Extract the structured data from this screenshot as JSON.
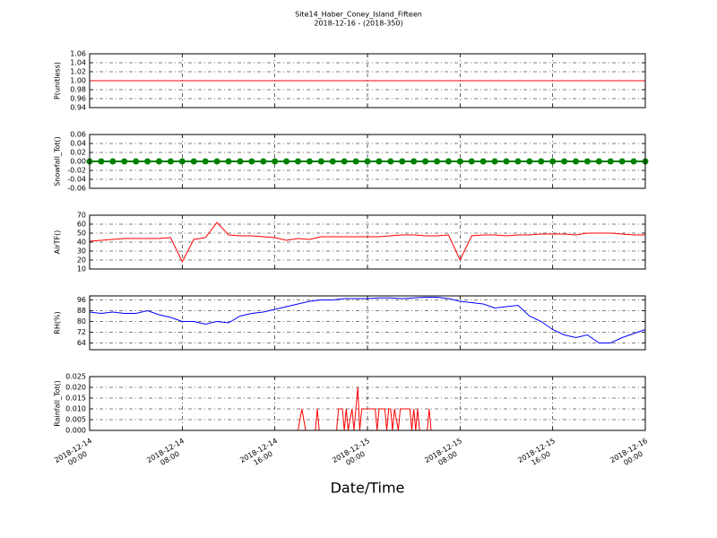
{
  "chart_data": [
    {
      "type": "line",
      "title": "Site14_Haber_Coney_Island_Fifteen",
      "subtitle": "2018-12-16 - (2018-350)",
      "ylabel": "P(unitless)",
      "ylim": [
        0.94,
        1.06
      ],
      "yticks": [
        0.94,
        0.96,
        0.98,
        {
          "value": 1,
          "label": "1.00"
        },
        1.02,
        1.04,
        1.06
      ],
      "grid": true,
      "color": "#ff0000",
      "x": [
        "2018-12-14 00:00",
        "2018-12-14 01:00",
        "2018-12-14 02:00",
        "2018-12-14 03:00",
        "2018-12-14 04:00",
        "2018-12-14 05:00",
        "2018-12-14 06:00",
        "2018-12-14 07:00",
        "2018-12-14 08:00",
        "2018-12-14 09:00",
        "2018-12-14 10:00",
        "2018-12-14 11:00",
        "2018-12-14 12:00",
        "2018-12-14 13:00",
        "2018-12-14 14:00",
        "2018-12-14 15:00",
        "2018-12-14 16:00",
        "2018-12-14 17:00",
        "2018-12-14 18:00",
        "2018-12-14 19:00",
        "2018-12-14 20:00",
        "2018-12-14 21:00",
        "2018-12-14 22:00",
        "2018-12-14 23:00",
        "2018-12-15 00:00",
        "2018-12-15 01:00",
        "2018-12-15 02:00",
        "2018-12-15 03:00",
        "2018-12-15 04:00",
        "2018-12-15 05:00",
        "2018-12-15 06:00",
        "2018-12-15 07:00",
        "2018-12-15 08:00",
        "2018-12-15 09:00",
        "2018-12-15 10:00",
        "2018-12-15 11:00",
        "2018-12-15 12:00",
        "2018-12-15 13:00",
        "2018-12-15 14:00",
        "2018-12-15 15:00",
        "2018-12-15 16:00",
        "2018-12-15 17:00",
        "2018-12-15 18:00",
        "2018-12-15 19:00",
        "2018-12-15 20:00",
        "2018-12-15 21:00",
        "2018-12-15 22:00",
        "2018-12-15 23:00",
        "2018-12-16 00:00"
      ],
      "values": [
        1,
        1,
        1,
        1,
        1,
        1,
        1,
        1,
        1,
        1,
        1,
        1,
        1,
        1,
        1,
        1,
        1,
        1,
        1,
        1,
        1,
        1,
        1,
        1,
        1,
        1,
        1,
        1,
        1,
        1,
        1,
        1,
        1,
        1,
        1,
        1,
        1,
        1,
        1,
        1,
        1,
        1,
        1,
        1,
        1,
        1,
        1,
        1,
        1
      ]
    },
    {
      "type": "line",
      "ylabel": "Snowfall_Tot()",
      "marker": "o",
      "ylim": [
        -0.06,
        0.06
      ],
      "yticks": [
        -0.06,
        -0.04,
        -0.02,
        {
          "value": 0,
          "label": "0.00"
        },
        0.02,
        0.04,
        0.06
      ],
      "grid": true,
      "color": "#008000",
      "x": [
        "2018-12-14 00:00",
        "2018-12-14 01:00",
        "2018-12-14 02:00",
        "2018-12-14 03:00",
        "2018-12-14 04:00",
        "2018-12-14 05:00",
        "2018-12-14 06:00",
        "2018-12-14 07:00",
        "2018-12-14 08:00",
        "2018-12-14 09:00",
        "2018-12-14 10:00",
        "2018-12-14 11:00",
        "2018-12-14 12:00",
        "2018-12-14 13:00",
        "2018-12-14 14:00",
        "2018-12-14 15:00",
        "2018-12-14 16:00",
        "2018-12-14 17:00",
        "2018-12-14 18:00",
        "2018-12-14 19:00",
        "2018-12-14 20:00",
        "2018-12-14 21:00",
        "2018-12-14 22:00",
        "2018-12-14 23:00",
        "2018-12-15 00:00",
        "2018-12-15 01:00",
        "2018-12-15 02:00",
        "2018-12-15 03:00",
        "2018-12-15 04:00",
        "2018-12-15 05:00",
        "2018-12-15 06:00",
        "2018-12-15 07:00",
        "2018-12-15 08:00",
        "2018-12-15 09:00",
        "2018-12-15 10:00",
        "2018-12-15 11:00",
        "2018-12-15 12:00",
        "2018-12-15 13:00",
        "2018-12-15 14:00",
        "2018-12-15 15:00",
        "2018-12-15 16:00",
        "2018-12-15 17:00",
        "2018-12-15 18:00",
        "2018-12-15 19:00",
        "2018-12-15 20:00",
        "2018-12-15 21:00",
        "2018-12-15 22:00",
        "2018-12-15 23:00",
        "2018-12-16 00:00"
      ],
      "values": [
        0,
        0,
        0,
        0,
        0,
        0,
        0,
        0,
        0,
        0,
        0,
        0,
        0,
        0,
        0,
        0,
        0,
        0,
        0,
        0,
        0,
        0,
        0,
        0,
        0,
        0,
        0,
        0,
        0,
        0,
        0,
        0,
        0,
        0,
        0,
        0,
        0,
        0,
        0,
        0,
        0,
        0,
        0,
        0,
        0,
        0,
        0,
        0,
        0
      ]
    },
    {
      "type": "line",
      "ylabel": "AirTF()",
      "ylim": [
        10,
        70
      ],
      "yticks": [
        10,
        20,
        30,
        40,
        50,
        60,
        70
      ],
      "grid": true,
      "color": "#ff0000",
      "x": [
        "2018-12-14 00:00",
        "2018-12-14 01:00",
        "2018-12-14 02:00",
        "2018-12-14 03:00",
        "2018-12-14 04:00",
        "2018-12-14 05:00",
        "2018-12-14 06:00",
        "2018-12-14 07:00",
        "2018-12-14 08:00",
        "2018-12-14 09:00",
        "2018-12-14 10:00",
        "2018-12-14 11:00",
        "2018-12-14 12:00",
        "2018-12-14 13:00",
        "2018-12-14 14:00",
        "2018-12-14 15:00",
        "2018-12-14 16:00",
        "2018-12-14 17:00",
        "2018-12-14 18:00",
        "2018-12-14 19:00",
        "2018-12-14 20:00",
        "2018-12-14 21:00",
        "2018-12-14 22:00",
        "2018-12-14 23:00",
        "2018-12-15 00:00",
        "2018-12-15 01:00",
        "2018-12-15 02:00",
        "2018-12-15 03:00",
        "2018-12-15 04:00",
        "2018-12-15 05:00",
        "2018-12-15 06:00",
        "2018-12-15 07:00",
        "2018-12-15 08:00",
        "2018-12-15 09:00",
        "2018-12-15 10:00",
        "2018-12-15 11:00",
        "2018-12-15 12:00",
        "2018-12-15 13:00",
        "2018-12-15 14:00",
        "2018-12-15 15:00",
        "2018-12-15 16:00",
        "2018-12-15 17:00",
        "2018-12-15 18:00",
        "2018-12-15 19:00",
        "2018-12-15 20:00",
        "2018-12-15 21:00",
        "2018-12-15 22:00",
        "2018-12-15 23:00",
        "2018-12-16 00:00"
      ],
      "values": [
        41,
        42,
        43,
        44,
        44,
        44,
        44,
        45,
        18,
        43,
        45,
        62,
        48,
        47,
        47,
        46,
        45,
        42,
        44,
        43,
        46,
        46,
        46,
        46,
        46,
        46,
        47,
        48,
        48,
        47,
        47,
        48,
        20,
        47,
        48,
        48,
        47,
        48,
        48,
        49,
        49,
        49,
        48,
        50,
        50,
        50,
        49,
        48,
        48
      ]
    },
    {
      "type": "line",
      "ylabel": "RH(%)",
      "ylim": [
        59,
        99
      ],
      "yticks": [
        64,
        72,
        80,
        88,
        96
      ],
      "grid": true,
      "color": "#0000ff",
      "x": [
        "2018-12-14 00:00",
        "2018-12-14 01:00",
        "2018-12-14 02:00",
        "2018-12-14 03:00",
        "2018-12-14 04:00",
        "2018-12-14 05:00",
        "2018-12-14 06:00",
        "2018-12-14 07:00",
        "2018-12-14 08:00",
        "2018-12-14 09:00",
        "2018-12-14 10:00",
        "2018-12-14 11:00",
        "2018-12-14 12:00",
        "2018-12-14 13:00",
        "2018-12-14 14:00",
        "2018-12-14 15:00",
        "2018-12-14 16:00",
        "2018-12-14 17:00",
        "2018-12-14 18:00",
        "2018-12-14 19:00",
        "2018-12-14 20:00",
        "2018-12-14 21:00",
        "2018-12-14 22:00",
        "2018-12-14 23:00",
        "2018-12-15 00:00",
        "2018-12-15 01:00",
        "2018-12-15 02:00",
        "2018-12-15 03:00",
        "2018-12-15 04:00",
        "2018-12-15 05:00",
        "2018-12-15 06:00",
        "2018-12-15 07:00",
        "2018-12-15 08:00",
        "2018-12-15 09:00",
        "2018-12-15 10:00",
        "2018-12-15 11:00",
        "2018-12-15 12:00",
        "2018-12-15 13:00",
        "2018-12-15 14:00",
        "2018-12-15 15:00",
        "2018-12-15 16:00",
        "2018-12-15 17:00",
        "2018-12-15 18:00",
        "2018-12-15 19:00",
        "2018-12-15 20:00",
        "2018-12-15 21:00",
        "2018-12-15 22:00",
        "2018-12-15 23:00",
        "2018-12-16 00:00"
      ],
      "values": [
        87,
        86,
        87,
        86,
        86,
        88,
        85,
        83,
        80,
        80,
        78,
        80,
        79,
        84,
        86,
        87,
        89,
        91,
        93,
        95,
        96,
        96,
        97,
        97,
        97,
        97.5,
        97.5,
        97,
        97.5,
        98,
        98,
        97,
        95,
        94,
        93,
        90,
        91,
        92,
        84,
        80,
        74,
        70,
        68,
        70,
        64,
        64,
        68,
        71,
        74
      ]
    },
    {
      "type": "line",
      "ylabel": "Rainfall_Tot()",
      "xlabel": "Date/Time",
      "ylim": [
        0,
        0.025
      ],
      "yticks": [
        {
          "value": 0,
          "label": "0.000"
        },
        0.005,
        {
          "value": 0.01,
          "label": "0.010"
        },
        0.015,
        {
          "value": 0.02,
          "label": "0.020"
        },
        0.025
      ],
      "grid": true,
      "color": "#ff0000",
      "xlim": [
        "2018-12-14 00:00",
        "2018-12-16 00:00"
      ],
      "xticks": [
        {
          "value": "2018-12-14 00:00",
          "label": "2018-12-14\n00:00"
        },
        {
          "value": "2018-12-14 08:00",
          "label": "2018-12-14\n08:00"
        },
        {
          "value": "2018-12-14 16:00",
          "label": "2018-12-14\n16:00"
        },
        {
          "value": "2018-12-15 00:00",
          "label": "2018-12-15\n00:00"
        },
        {
          "value": "2018-12-15 08:00",
          "label": "2018-12-15\n08:00"
        },
        {
          "value": "2018-12-15 16:00",
          "label": "2018-12-15\n16:00"
        },
        {
          "value": "2018-12-16 00:00",
          "label": "2018-12-16\n00:00"
        }
      ],
      "x": [
        "2018-12-14 00:00",
        "2018-12-14 18:00",
        "2018-12-14 18:20",
        "2018-12-14 18:40",
        "2018-12-14 19:30",
        "2018-12-14 19:40",
        "2018-12-14 19:50",
        "2018-12-14 21:20",
        "2018-12-14 21:30",
        "2018-12-14 21:50",
        "2018-12-14 22:00",
        "2018-12-14 22:10",
        "2018-12-14 22:20",
        "2018-12-14 22:40",
        "2018-12-14 22:50",
        "2018-12-14 23:00",
        "2018-12-14 23:10",
        "2018-12-14 23:20",
        "2018-12-14 23:30",
        "2018-12-15 00:40",
        "2018-12-15 00:50",
        "2018-12-15 01:00",
        "2018-12-15 01:30",
        "2018-12-15 01:40",
        "2018-12-15 01:50",
        "2018-12-15 02:00",
        "2018-12-15 02:10",
        "2018-12-15 02:20",
        "2018-12-15 02:40",
        "2018-12-15 02:50",
        "2018-12-15 03:40",
        "2018-12-15 03:50",
        "2018-12-15 04:00",
        "2018-12-15 04:10",
        "2018-12-15 04:20",
        "2018-12-15 04:30",
        "2018-12-15 05:10",
        "2018-12-15 05:20",
        "2018-12-15 05:30",
        "2018-12-16 00:00"
      ],
      "values": [
        0,
        0,
        0.01,
        0,
        0,
        0.01,
        0,
        0,
        0.01,
        0.01,
        0,
        0.01,
        0,
        0.01,
        0,
        0.01,
        0.02,
        0,
        0.01,
        0.01,
        0,
        0.01,
        0.01,
        0,
        0.01,
        0.01,
        0,
        0.01,
        0,
        0.01,
        0.01,
        0,
        0.01,
        0,
        0.01,
        0,
        0,
        0.01,
        0,
        0
      ]
    }
  ]
}
